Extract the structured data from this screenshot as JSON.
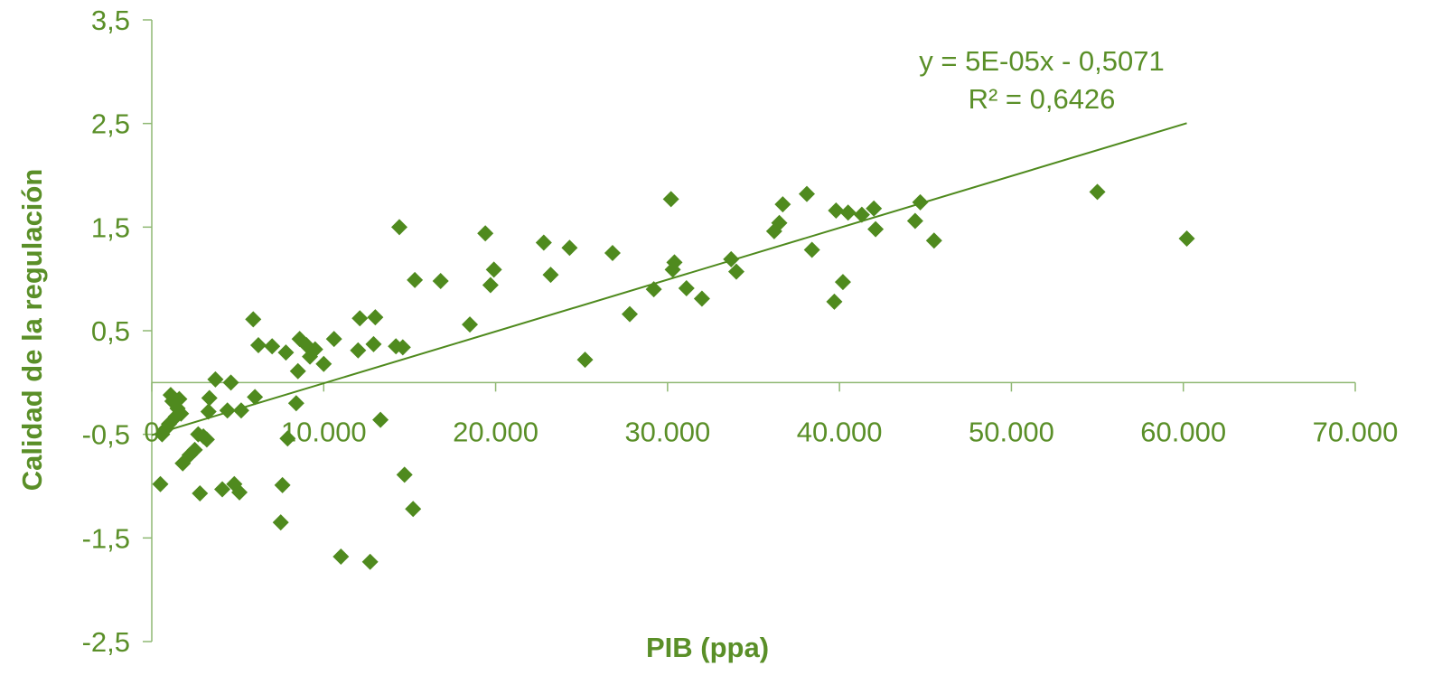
{
  "colors": {
    "marker": "#4f8a1e",
    "text": "#5a8f28",
    "axis": "#8fb873",
    "trendline": "#4f8a1e"
  },
  "chart_data": {
    "type": "scatter",
    "title": "",
    "xlabel": "PIB (ppa)",
    "ylabel": "Calidad de la regulación",
    "xlim": [
      0,
      70000
    ],
    "ylim": [
      -2.5,
      3.5
    ],
    "x_ticks": [
      0,
      10000,
      20000,
      30000,
      40000,
      50000,
      60000,
      70000
    ],
    "x_tick_labels": [
      "0",
      "10.000",
      "20.000",
      "30.000",
      "40.000",
      "50.000",
      "60.000",
      "70.000"
    ],
    "y_ticks": [
      3.5,
      2.5,
      1.5,
      0.5,
      -0.5,
      -1.5,
      -2.5
    ],
    "y_tick_labels": [
      "3,5",
      "2,5",
      "1,5",
      "0,5",
      "-0,5",
      "-1,5",
      "-2,5"
    ],
    "grid": false,
    "marker": "diamond",
    "trendline": {
      "type": "linear",
      "slope": 5e-05,
      "intercept": -0.5071,
      "x_range": [
        0,
        60200
      ],
      "equation_label": "y = 5E-05x - 0,5071",
      "r2_label": "R² = 0,6426"
    },
    "points": [
      [
        500,
        -0.98
      ],
      [
        600,
        -0.5
      ],
      [
        800,
        -0.45
      ],
      [
        1000,
        -0.4
      ],
      [
        1100,
        -0.12
      ],
      [
        1200,
        -0.18
      ],
      [
        1400,
        -0.33
      ],
      [
        1500,
        -0.25
      ],
      [
        1600,
        -0.16
      ],
      [
        1700,
        -0.3
      ],
      [
        1800,
        -0.78
      ],
      [
        2200,
        -0.7
      ],
      [
        2500,
        -0.65
      ],
      [
        2700,
        -0.5
      ],
      [
        2800,
        -1.07
      ],
      [
        3000,
        -0.52
      ],
      [
        3200,
        -0.55
      ],
      [
        3300,
        -0.28
      ],
      [
        3350,
        -0.15
      ],
      [
        3700,
        0.03
      ],
      [
        4100,
        -1.03
      ],
      [
        4400,
        -0.27
      ],
      [
        4600,
        0.0
      ],
      [
        4800,
        -0.98
      ],
      [
        5100,
        -1.06
      ],
      [
        5200,
        -0.27
      ],
      [
        5900,
        0.61
      ],
      [
        6000,
        -0.14
      ],
      [
        6200,
        0.36
      ],
      [
        7000,
        0.35
      ],
      [
        7500,
        -1.35
      ],
      [
        7600,
        -0.99
      ],
      [
        7800,
        0.29
      ],
      [
        7900,
        -0.54
      ],
      [
        8400,
        -0.2
      ],
      [
        8500,
        0.11
      ],
      [
        8600,
        0.42
      ],
      [
        9000,
        0.36
      ],
      [
        9200,
        0.25
      ],
      [
        9500,
        0.32
      ],
      [
        10000,
        0.18
      ],
      [
        10600,
        0.42
      ],
      [
        11000,
        -1.68
      ],
      [
        12000,
        0.31
      ],
      [
        12100,
        0.62
      ],
      [
        12700,
        -1.73
      ],
      [
        12900,
        0.37
      ],
      [
        13000,
        0.63
      ],
      [
        13300,
        -0.36
      ],
      [
        14200,
        0.35
      ],
      [
        14400,
        1.5
      ],
      [
        14600,
        0.34
      ],
      [
        14700,
        -0.89
      ],
      [
        15200,
        -1.22
      ],
      [
        15300,
        0.99
      ],
      [
        16800,
        0.98
      ],
      [
        18500,
        0.56
      ],
      [
        19400,
        1.44
      ],
      [
        19700,
        0.94
      ],
      [
        19900,
        1.09
      ],
      [
        22800,
        1.35
      ],
      [
        23200,
        1.04
      ],
      [
        24300,
        1.3
      ],
      [
        25200,
        0.22
      ],
      [
        26800,
        1.25
      ],
      [
        27800,
        0.66
      ],
      [
        29200,
        0.9
      ],
      [
        30200,
        1.77
      ],
      [
        30300,
        1.09
      ],
      [
        30400,
        1.16
      ],
      [
        31100,
        0.91
      ],
      [
        32000,
        0.81
      ],
      [
        33700,
        1.19
      ],
      [
        34000,
        1.07
      ],
      [
        36200,
        1.46
      ],
      [
        36500,
        1.54
      ],
      [
        36700,
        1.72
      ],
      [
        38100,
        1.82
      ],
      [
        38400,
        1.28
      ],
      [
        39700,
        0.78
      ],
      [
        39800,
        1.66
      ],
      [
        40200,
        0.97
      ],
      [
        40500,
        1.64
      ],
      [
        41300,
        1.62
      ],
      [
        42000,
        1.68
      ],
      [
        42100,
        1.48
      ],
      [
        44400,
        1.56
      ],
      [
        44700,
        1.74
      ],
      [
        45500,
        1.37
      ],
      [
        55000,
        1.84
      ],
      [
        60200,
        1.39
      ]
    ]
  }
}
